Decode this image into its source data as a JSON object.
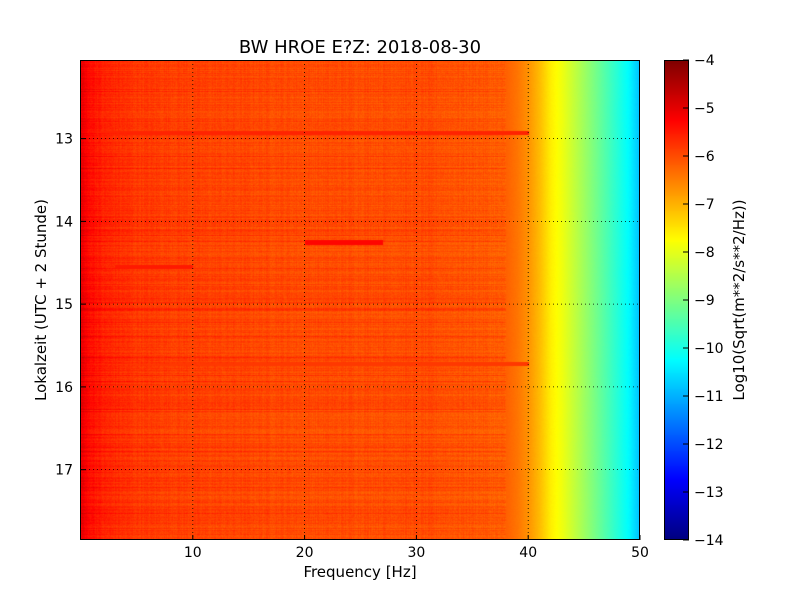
{
  "chart_data": {
    "type": "heatmap",
    "title": "BW HROE E?Z: 2018-08-30",
    "xlabel": "Frequency [Hz]",
    "ylabel": "Lokalzeit (UTC + 2 Stunde)",
    "xlim": [
      0,
      50
    ],
    "ylim": [
      12.05,
      17.85
    ],
    "y_inverted": true,
    "x_ticks": [
      "10",
      "20",
      "30",
      "40",
      "50"
    ],
    "x_tick_values": [
      10,
      20,
      30,
      40,
      50
    ],
    "y_ticks": [
      "13",
      "14",
      "15",
      "16",
      "17"
    ],
    "y_tick_values": [
      13,
      14,
      15,
      16,
      17
    ],
    "grid": true,
    "colormap": "jet",
    "colorbar": {
      "label": "Log10(Sqrt(m**2/s**2/Hz))",
      "min": -14,
      "max": -4,
      "ticks": [
        "−4",
        "−5",
        "−6",
        "−7",
        "−8",
        "−9",
        "−10",
        "−11",
        "−12",
        "−13",
        "−14"
      ],
      "tick_values": [
        -4,
        -5,
        -6,
        -7,
        -8,
        -9,
        -10,
        -11,
        -12,
        -13,
        -14
      ]
    },
    "spectrum_profile": {
      "frequency_hz": [
        0,
        0.5,
        1,
        2,
        5,
        10,
        20,
        30,
        36,
        38,
        39,
        40,
        41,
        42,
        43,
        44,
        45,
        46,
        47,
        48,
        49,
        49.5,
        50
      ],
      "log10_value": [
        -5.0,
        -5.3,
        -5.4,
        -5.6,
        -5.8,
        -5.9,
        -6.0,
        -6.0,
        -6.1,
        -6.2,
        -6.4,
        -6.7,
        -7.1,
        -7.6,
        -7.9,
        -8.3,
        -8.7,
        -9.1,
        -9.5,
        -9.9,
        -10.3,
        -10.6,
        -10.9
      ]
    },
    "line_features": [
      {
        "time": 14.25,
        "frequency_hz": [
          20,
          27
        ],
        "log10_value": -5.3
      },
      {
        "time": 12.93,
        "frequency_hz": [
          0,
          40
        ],
        "log10_value": -5.6
      },
      {
        "time": 14.55,
        "frequency_hz": [
          3,
          10
        ],
        "log10_value": -5.5
      },
      {
        "time": 15.72,
        "frequency_hz": [
          1,
          40
        ],
        "log10_value": -5.8
      }
    ]
  }
}
